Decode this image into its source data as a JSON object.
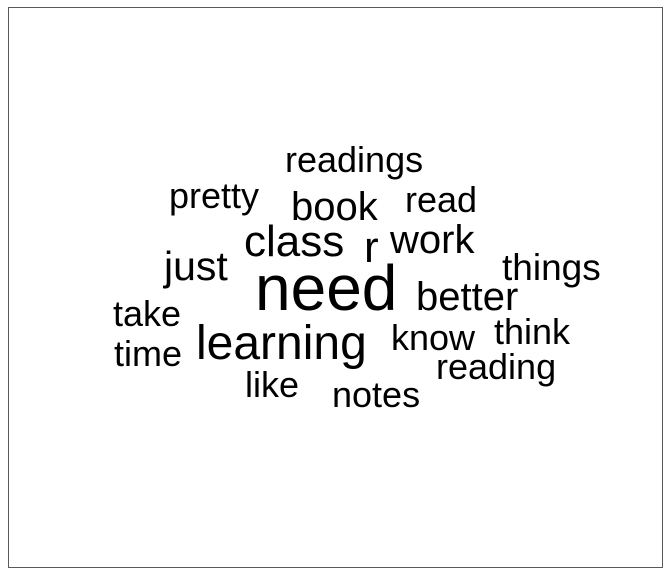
{
  "chart_data": {
    "type": "wordcloud",
    "text_color": "#000000",
    "border_color": "#595959",
    "background": "#ffffff",
    "words": [
      {
        "text": "need",
        "weight": 10
      },
      {
        "text": "learning",
        "weight": 6.5
      },
      {
        "text": "class",
        "weight": 6
      },
      {
        "text": "book",
        "weight": 5
      },
      {
        "text": "work",
        "weight": 5
      },
      {
        "text": "better",
        "weight": 5
      },
      {
        "text": "r",
        "weight": 5
      },
      {
        "text": "just",
        "weight": 4.8
      },
      {
        "text": "things",
        "weight": 4.5
      },
      {
        "text": "readings",
        "weight": 4.5
      },
      {
        "text": "reading",
        "weight": 4.5
      },
      {
        "text": "think",
        "weight": 4.5
      },
      {
        "text": "read",
        "weight": 4.5
      },
      {
        "text": "know",
        "weight": 4.3
      },
      {
        "text": "time",
        "weight": 4.3
      },
      {
        "text": "take",
        "weight": 4.3
      },
      {
        "text": "pretty",
        "weight": 4.3
      },
      {
        "text": "notes",
        "weight": 4.3
      },
      {
        "text": "like",
        "weight": 4.3
      }
    ]
  }
}
